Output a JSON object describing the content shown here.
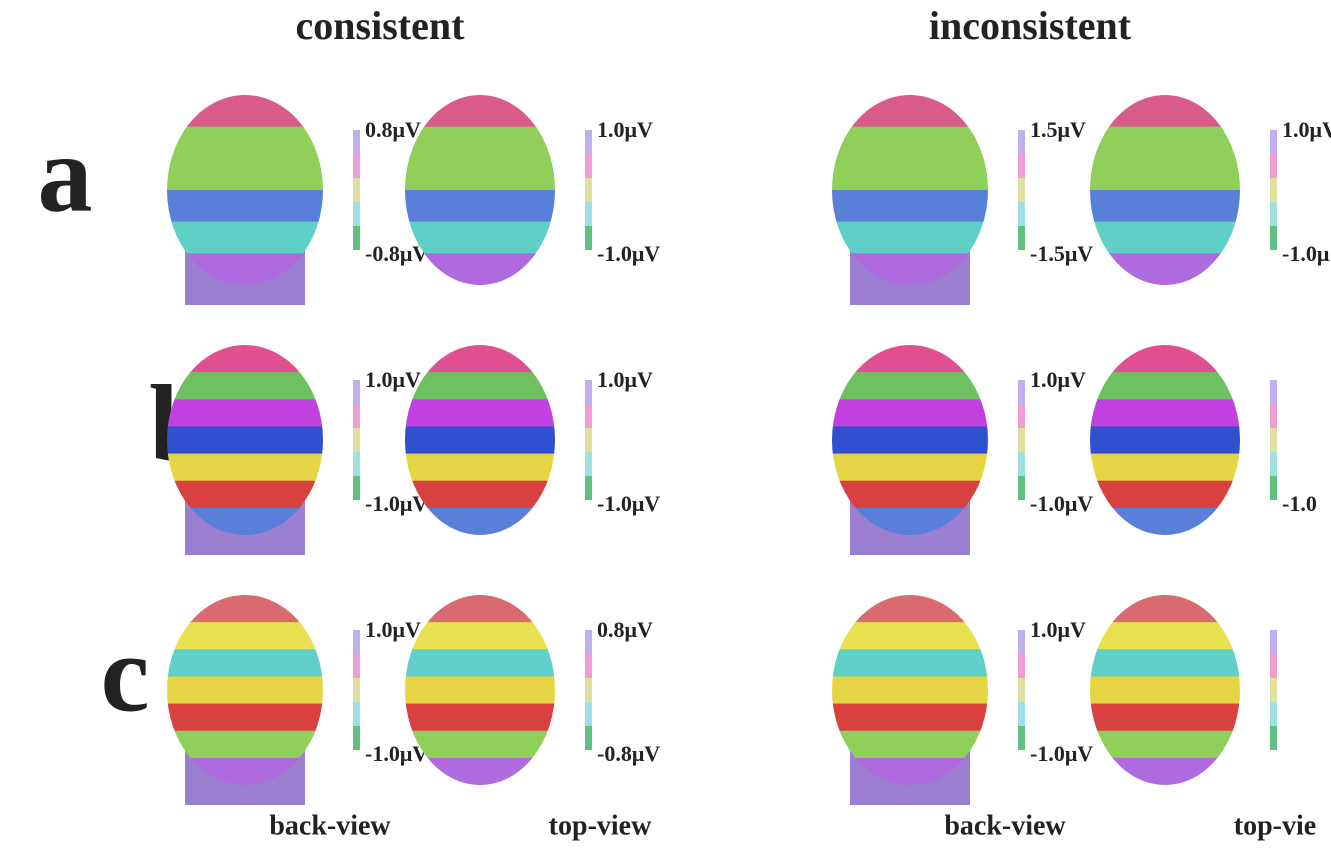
{
  "header": {
    "columns": [
      "consistent",
      "inconsistent"
    ]
  },
  "rows": [
    {
      "label": "a",
      "panels": [
        {
          "max": "0.8μV",
          "min": "-0.8μV"
        },
        {
          "max": "1.0μV",
          "min": "-1.0μV"
        },
        {
          "max": "1.5μV",
          "min": "-1.5μV"
        },
        {
          "max": "1.0μV",
          "min": "-1.0μ"
        }
      ]
    },
    {
      "label": "b",
      "panels": [
        {
          "max": "1.0μV",
          "min": "-1.0μV"
        },
        {
          "max": "1.0μV",
          "min": "-1.0μV"
        },
        {
          "max": "1.0μV",
          "min": "-1.0μV"
        },
        {
          "min": "-1.0"
        }
      ]
    },
    {
      "label": "c",
      "panels": [
        {
          "max": "1.0μV",
          "min": "-1.0μV"
        },
        {
          "max": "0.8μV",
          "min": "-0.8μV"
        },
        {
          "max": "1.0μV",
          "min": "-1.0μV"
        },
        {}
      ]
    }
  ],
  "footer": {
    "views": [
      "back-view",
      "top-view",
      "back-view",
      "top-vie"
    ]
  }
}
